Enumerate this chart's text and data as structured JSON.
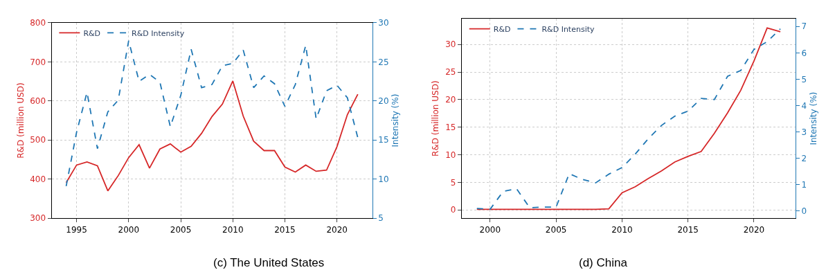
{
  "chart_data": [
    {
      "type": "line",
      "title": "(c) The United States",
      "ylabel": "R&D (million USD)",
      "y2label": "Intensity (%)",
      "x": [
        1994,
        1995,
        1996,
        1997,
        1998,
        1999,
        2000,
        2001,
        2002,
        2003,
        2004,
        2005,
        2006,
        2007,
        2008,
        2009,
        2010,
        2011,
        2012,
        2013,
        2014,
        2015,
        2016,
        2017,
        2018,
        2019,
        2020,
        2021,
        2022
      ],
      "series": [
        {
          "name": "R&D",
          "color": "#d62728",
          "line_style": "solid",
          "values": [
            391,
            436,
            444,
            434,
            370,
            409,
            455,
            488,
            428,
            477,
            490,
            469,
            484,
            517,
            560,
            592,
            651,
            561,
            497,
            473,
            473,
            431,
            418,
            436,
            420,
            423,
            483,
            565,
            617
          ]
        },
        {
          "name": "R&D Intensity",
          "color": "#1f77b4",
          "line_style": "dashed",
          "axis": "y2",
          "values": [
            9.1,
            16.0,
            21.1,
            13.9,
            18.6,
            20.1,
            27.7,
            22.5,
            23.4,
            22.4,
            16.7,
            20.7,
            26.6,
            21.7,
            22.1,
            24.5,
            24.8,
            26.5,
            21.7,
            23.2,
            22.2,
            19.3,
            22.1,
            27.1,
            17.7,
            21.3,
            22.0,
            20.4,
            15.3
          ]
        }
      ],
      "xlim": [
        1992.6,
        2023.4
      ],
      "xticks": [
        1995,
        2000,
        2005,
        2010,
        2015,
        2020
      ],
      "ylim": [
        300,
        800
      ],
      "yticks": [
        300,
        400,
        500,
        600,
        700,
        800
      ],
      "y2lim": [
        5,
        30
      ],
      "y2ticks": [
        5,
        10,
        15,
        20,
        25,
        30
      ],
      "grid": true,
      "legend": "top left",
      "marker": "none"
    },
    {
      "type": "line",
      "title": "(d) China",
      "ylabel": "R&D (million USD)",
      "y2label": "Intensity (%)",
      "x": [
        1999,
        2000,
        2001,
        2002,
        2003,
        2004,
        2005,
        2006,
        2007,
        2008,
        2009,
        2010,
        2011,
        2012,
        2013,
        2014,
        2015,
        2016,
        2017,
        2018,
        2019,
        2020,
        2021,
        2022
      ],
      "series": [
        {
          "name": "R&D",
          "color": "#d62728",
          "line_style": "solid",
          "values": [
            0.1,
            0.1,
            0.1,
            0.1,
            0.1,
            0.1,
            0.1,
            0.1,
            0.1,
            0.1,
            0.2,
            3.1,
            4.2,
            5.7,
            7.1,
            8.7,
            9.7,
            10.6,
            13.9,
            17.6,
            21.7,
            27.0,
            33.0,
            32.3
          ]
        },
        {
          "name": "R&D Intensity",
          "color": "#1f77b4",
          "line_style": "dashed",
          "axis": "y2",
          "values": [
            0.1,
            0.07,
            0.75,
            0.85,
            0.13,
            0.15,
            0.15,
            1.42,
            1.2,
            1.07,
            1.4,
            1.65,
            2.16,
            2.75,
            3.25,
            3.6,
            3.79,
            4.27,
            4.23,
            5.11,
            5.33,
            6.13,
            6.42,
            6.91
          ]
        }
      ],
      "xlim": [
        1997.85,
        2023.15
      ],
      "xticks": [
        2000,
        2005,
        2010,
        2015,
        2020
      ],
      "ylim": [
        -1.5,
        34.65
      ],
      "yticks": [
        0,
        5,
        10,
        15,
        20,
        25,
        30
      ],
      "y2lim": [
        -0.27,
        7.29
      ],
      "y2ticks": [
        0,
        1,
        2,
        3,
        4,
        5,
        6,
        7
      ],
      "grid": true,
      "legend": "top left",
      "marker": "none"
    }
  ]
}
